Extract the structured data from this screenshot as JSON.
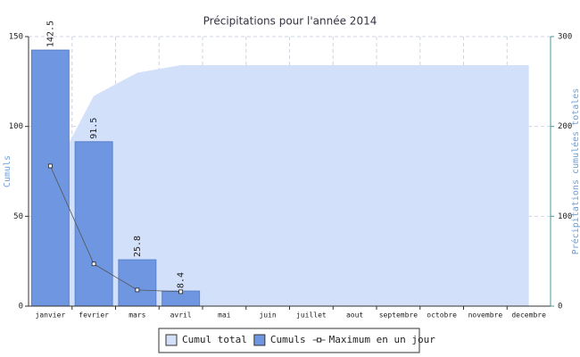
{
  "chart_data": {
    "type": "bar",
    "title": "Précipitations pour l'année 2014",
    "y_label": "Cumuls",
    "y2_label": "Précipitations cumulées totales",
    "categories": [
      "janvier",
      "fevrier",
      "mars",
      "avril",
      "mai",
      "juin",
      "juillet",
      "aout",
      "septembre",
      "octobre",
      "novembre",
      "decembre"
    ],
    "series": [
      {
        "name": "Cumul total",
        "type": "area",
        "axis": "y2",
        "color": "#d2e0fa",
        "values": [
          142.5,
          234,
          259.8,
          268.2,
          268.2,
          268.2,
          268.2,
          268.2,
          268.2,
          268.2,
          268.2,
          268.2
        ]
      },
      {
        "name": "Cumuls",
        "type": "bar",
        "color": "#6f96e0",
        "values": [
          142.5,
          91.5,
          25.8,
          8.4,
          null,
          null,
          null,
          null,
          null,
          null,
          null,
          null
        ]
      },
      {
        "name": "Maximum en un jour",
        "type": "line",
        "color": "#555555",
        "values": [
          78,
          23.5,
          9,
          8,
          null,
          null,
          null,
          null,
          null,
          null,
          null,
          null
        ]
      }
    ],
    "ylim": [
      0,
      150
    ],
    "yticks": [
      0,
      50,
      100,
      150
    ],
    "y2lim": [
      0,
      300
    ],
    "y2ticks": [
      0,
      100,
      200,
      300
    ],
    "grid": true
  }
}
